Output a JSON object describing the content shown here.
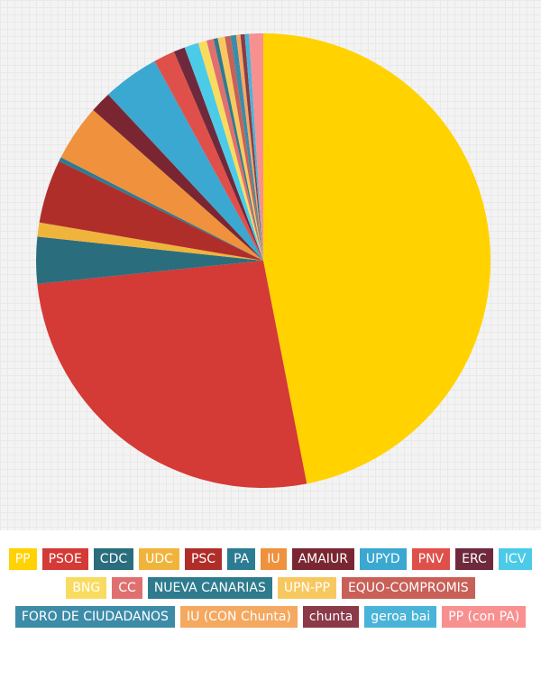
{
  "chart_data": {
    "type": "pie",
    "categories": [
      "PP",
      "PSOE",
      "CDC",
      "UDC",
      "PSC",
      "PA",
      "IU",
      "AMAIUR",
      "UPYD",
      "PNV",
      "ERC",
      "ICV",
      "BNG",
      "CC",
      "NUEVA CANARIAS",
      "UPN-PP",
      "EQUO-COMPROMIS",
      "FORO DE CIUDADANOS",
      "IU (CON Chunta)",
      "chunta",
      "geroa bai",
      "PP (con PA)"
    ],
    "values": [
      46.7,
      26.3,
      3.3,
      1.0,
      4.5,
      0.3,
      4.0,
      1.5,
      4.0,
      1.5,
      0.8,
      1.0,
      0.6,
      0.5,
      0.3,
      0.5,
      0.4,
      0.4,
      0.3,
      0.3,
      0.3,
      1.0
    ],
    "colors": [
      "#ffd200",
      "#d43a36",
      "#2a6e7e",
      "#f0b43c",
      "#b02e2a",
      "#2b7c93",
      "#f0913e",
      "#7a2632",
      "#3aa8d0",
      "#e0504a",
      "#6e2a3c",
      "#4ccbe8",
      "#f8dc60",
      "#e07070",
      "#2e7b8e",
      "#f8c860",
      "#c86058",
      "#3c8ca8",
      "#f4a860",
      "#8a3a48",
      "#4ab4d8",
      "#f89090"
    ]
  }
}
